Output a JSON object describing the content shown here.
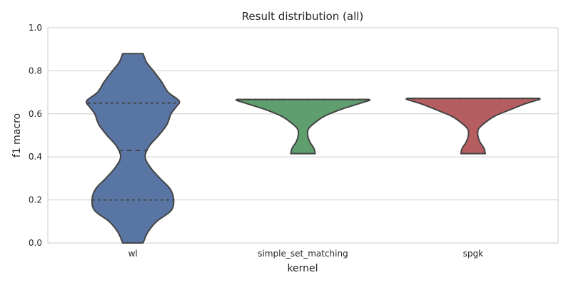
{
  "chart_data": {
    "type": "violin",
    "title": "Result distribution (all)",
    "xlabel": "kernel",
    "ylabel": "f1 macro",
    "categories": [
      "wl",
      "simple_set_matching",
      "spgk"
    ],
    "ylim": [
      0.0,
      1.0
    ],
    "yticks": [
      "0.0",
      "0.2",
      "0.4",
      "0.6",
      "0.8",
      "1.0"
    ],
    "grid": true,
    "colors": [
      "#5975a4",
      "#5f9e6e",
      "#b55d60"
    ],
    "violins": [
      {
        "category": "wl",
        "min": 0.0,
        "max": 0.88,
        "quartiles": [
          0.2,
          0.43,
          0.65
        ],
        "profile": [
          [
            0.0,
            0.15
          ],
          [
            0.05,
            0.22
          ],
          [
            0.1,
            0.35
          ],
          [
            0.15,
            0.56
          ],
          [
            0.2,
            0.6
          ],
          [
            0.25,
            0.55
          ],
          [
            0.3,
            0.4
          ],
          [
            0.35,
            0.26
          ],
          [
            0.4,
            0.18
          ],
          [
            0.45,
            0.24
          ],
          [
            0.5,
            0.38
          ],
          [
            0.55,
            0.5
          ],
          [
            0.6,
            0.56
          ],
          [
            0.63,
            0.63
          ],
          [
            0.66,
            0.68
          ],
          [
            0.7,
            0.52
          ],
          [
            0.75,
            0.42
          ],
          [
            0.8,
            0.3
          ],
          [
            0.84,
            0.2
          ],
          [
            0.88,
            0.15
          ]
        ]
      },
      {
        "category": "simple_set_matching",
        "min": 0.415,
        "max": 0.667,
        "quartiles": [
          0.666,
          0.667,
          0.667
        ],
        "profile": [
          [
            0.415,
            0.18
          ],
          [
            0.44,
            0.16
          ],
          [
            0.47,
            0.1
          ],
          [
            0.5,
            0.07
          ],
          [
            0.53,
            0.08
          ],
          [
            0.56,
            0.18
          ],
          [
            0.59,
            0.32
          ],
          [
            0.62,
            0.55
          ],
          [
            0.64,
            0.75
          ],
          [
            0.655,
            0.9
          ],
          [
            0.663,
            0.98
          ],
          [
            0.667,
            0.97
          ]
        ]
      },
      {
        "category": "spgk",
        "min": 0.415,
        "max": 0.672,
        "quartiles": [
          0.671,
          0.672,
          0.672
        ],
        "profile": [
          [
            0.415,
            0.18
          ],
          [
            0.44,
            0.16
          ],
          [
            0.47,
            0.1
          ],
          [
            0.5,
            0.07
          ],
          [
            0.53,
            0.08
          ],
          [
            0.56,
            0.18
          ],
          [
            0.59,
            0.32
          ],
          [
            0.62,
            0.55
          ],
          [
            0.645,
            0.75
          ],
          [
            0.66,
            0.9
          ],
          [
            0.668,
            0.98
          ],
          [
            0.672,
            0.97
          ]
        ]
      }
    ]
  }
}
